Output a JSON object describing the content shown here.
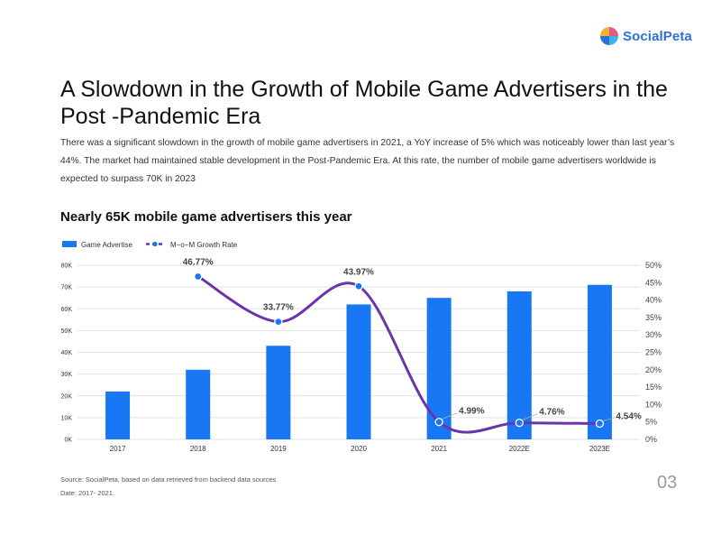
{
  "brand": {
    "logo_text": "SocialPeta",
    "logo_colors": [
      "#e8578a",
      "#3bb4e8",
      "#f2b230",
      "#2f6fd6"
    ]
  },
  "header": {
    "title": "A Slowdown in the Growth of Mobile Game Advertisers in the Post -Pandemic Era",
    "description": "There was a significant slowdown in the growth of mobile game advertisers in 2021, a YoY increase of 5% which was noticeably lower than last year’s 44%. The market had maintained stable development in the Post-Pandemic Era. At this rate, the number of mobile game advertisers worldwide is expected to surpass 70K in 2023"
  },
  "chart_title": "Nearly 65K mobile game advertisers this year",
  "chart_data": {
    "type": "bar",
    "categories": [
      "2017",
      "2018",
      "2019",
      "2020",
      "2021",
      "2022E",
      "2023E"
    ],
    "series": [
      {
        "name": "Game Advertise",
        "type": "bar",
        "axis": "left",
        "color": "#1877f2",
        "values": [
          22000,
          32000,
          43000,
          62000,
          65000,
          68000,
          71000
        ]
      },
      {
        "name": "M-o-M Growth Rate",
        "type": "line",
        "axis": "right",
        "color": "#6a35a8",
        "values": [
          null,
          46.77,
          33.77,
          43.97,
          4.99,
          4.76,
          4.54
        ],
        "labels": [
          "",
          "46.77%",
          "33.77%",
          "43.97%",
          "4.99%",
          "4.76%",
          "4.54%"
        ]
      }
    ],
    "y_left": {
      "min": 0,
      "max": 80000,
      "ticks": [
        "0K",
        "10K",
        "20K",
        "30K",
        "40K",
        "50K",
        "60K",
        "70K",
        "80K"
      ]
    },
    "y_right": {
      "min": 0,
      "max": 50,
      "ticks": [
        "0%",
        "5%",
        "10%",
        "15%",
        "20%",
        "25%",
        "30%",
        "35%",
        "40%",
        "45%",
        "50%"
      ]
    },
    "legend_position": "top-left",
    "grid": true
  },
  "footer": {
    "source": "Source: SocialPeta, based on data retrieved from backend data sources",
    "date": "Date: 2017- 2021.",
    "page_number": "03"
  }
}
